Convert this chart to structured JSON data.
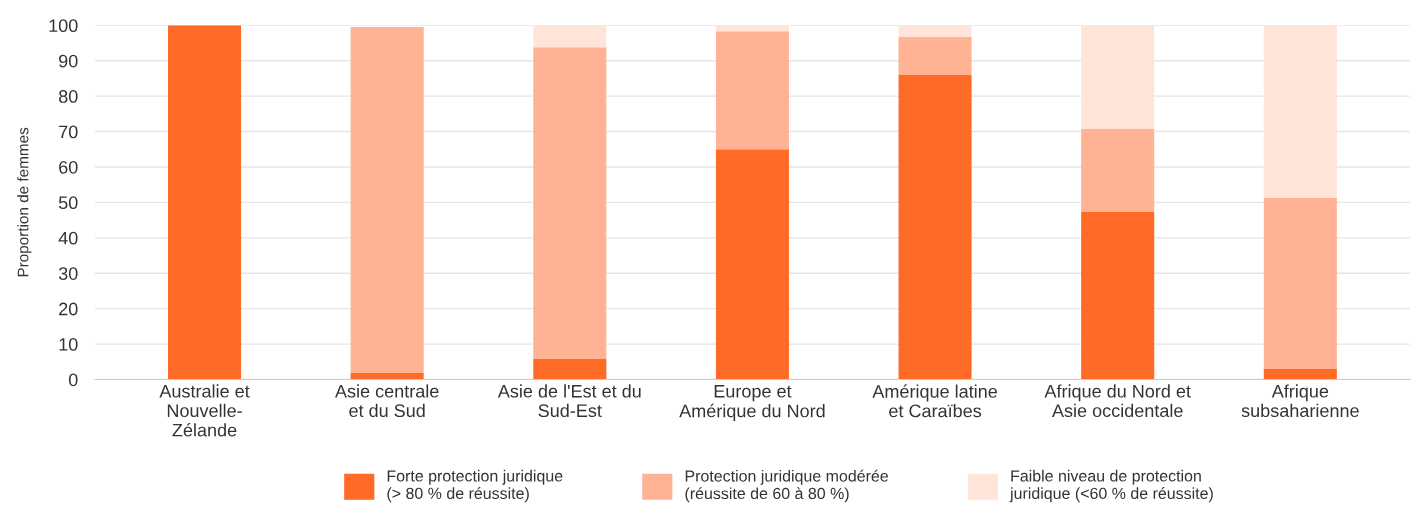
{
  "chart_data": {
    "type": "bar",
    "stacked": true,
    "ylabel": "Proportion de femmes",
    "categories": [
      "Australie et\nNouvelle-\nZélande",
      "Asie centrale\net du Sud",
      "Asie de l'Est et du\nSud-Est",
      "Europe et\nAmérique du Nord",
      "Amérique latine\net Caraïbes",
      "Afrique du Nord et\nAsie occidentale",
      "Afrique\nsubsaharienne"
    ],
    "series": [
      {
        "name": "Forte protection juridique\n(> 80 % de réussite)",
        "color": "#ff6a26",
        "values": [
          100,
          2,
          5.9,
          65,
          86,
          47.3,
          3.1
        ]
      },
      {
        "name": "Protection juridique modérée\n(réussite de 60 à 80 %)",
        "color": "#ffb394",
        "values": [
          0,
          97.5,
          87.9,
          33.3,
          10.7,
          23.4,
          48.2
        ]
      },
      {
        "name": "Faible niveau de protection\njuridique (<60 % de réussite)",
        "color": "#ffe5d9",
        "values": [
          0,
          null,
          6.2,
          1.7,
          3.3,
          29.3,
          48.7
        ]
      }
    ],
    "ylim": [
      0,
      100
    ],
    "yticks": [
      0,
      10,
      20,
      30,
      40,
      50,
      60,
      70,
      80,
      90,
      100
    ],
    "grid": "y",
    "legend": "bottom"
  }
}
